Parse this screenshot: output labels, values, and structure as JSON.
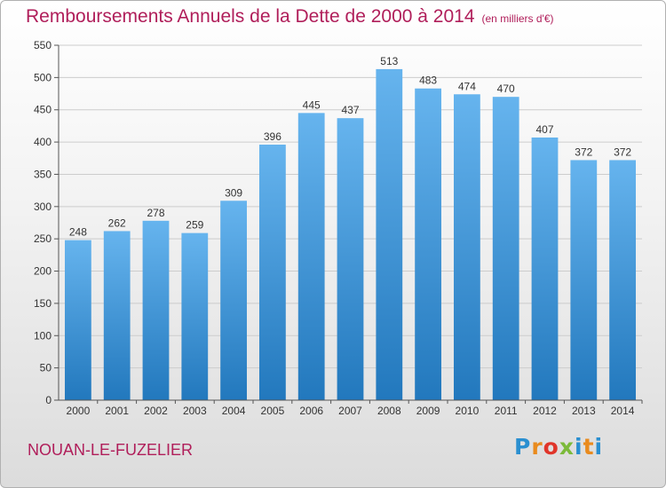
{
  "chart_data": {
    "type": "bar",
    "title": "Remboursements Annuels de la Dette de 2000 à 2014",
    "subtitle": "(en milliers d'€)",
    "categories": [
      "2000",
      "2001",
      "2002",
      "2003",
      "2004",
      "2005",
      "2006",
      "2007",
      "2008",
      "2009",
      "2010",
      "2011",
      "2012",
      "2013",
      "2014"
    ],
    "values": [
      248,
      262,
      278,
      259,
      309,
      396,
      445,
      437,
      513,
      483,
      474,
      470,
      407,
      372,
      372
    ],
    "ylim": [
      0,
      550
    ],
    "yticks": [
      0,
      50,
      100,
      150,
      200,
      250,
      300,
      350,
      400,
      450,
      500,
      550
    ],
    "grid": true,
    "bar_color_top": "#66b4ee",
    "bar_color_bottom": "#2278bd",
    "grid_color": "#cccccc"
  },
  "footer": {
    "place": "NOUAN-LE-FUZELIER",
    "logo": "Proxiti",
    "logo_colors": [
      "#2a8fd0",
      "#e98b1e",
      "#e0352a",
      "#7cba3a",
      "#2a8fd0",
      "#e98b1e",
      "#2a8fd0"
    ]
  }
}
